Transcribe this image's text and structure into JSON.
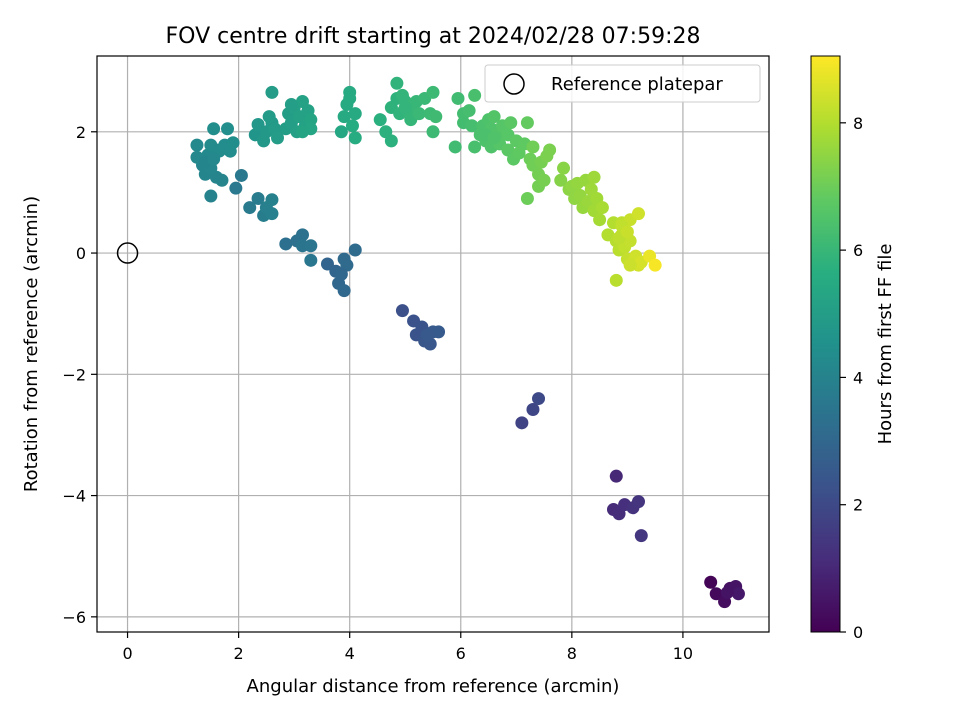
{
  "chart_data": {
    "type": "scatter",
    "title": "FOV centre drift starting at 2024/02/28 07:59:28",
    "xlabel": "Angular distance from reference (arcmin)",
    "ylabel": "Rotation from reference (arcmin)",
    "xlim": [
      -0.55,
      11.55
    ],
    "ylim": [
      -6.25,
      3.25
    ],
    "xticks": [
      0,
      2,
      4,
      6,
      8,
      10
    ],
    "yticks": [
      -6,
      -4,
      -2,
      0,
      2
    ],
    "grid": true,
    "legend": {
      "label": "Reference platepar",
      "placement": "top-right"
    },
    "reference_point": {
      "x": 0,
      "y": 0
    },
    "colorbar": {
      "label": "Hours from first FF file",
      "range": [
        0,
        9.05
      ],
      "ticks": [
        0,
        2,
        4,
        6,
        8
      ],
      "colormap": "viridis"
    },
    "series": [
      {
        "points": [
          [
            10.5,
            -5.43,
            0.1
          ],
          [
            10.6,
            -5.62,
            0.2
          ],
          [
            10.75,
            -5.75,
            0.3
          ],
          [
            10.85,
            -5.53,
            0.4
          ],
          [
            10.95,
            -5.5,
            0.5
          ],
          [
            11.0,
            -5.62,
            0.6
          ],
          [
            10.8,
            -5.6,
            0.45
          ],
          [
            8.8,
            -3.68,
            1.0
          ],
          [
            8.75,
            -4.23,
            1.1
          ],
          [
            8.85,
            -4.3,
            1.15
          ],
          [
            8.95,
            -4.15,
            1.2
          ],
          [
            9.1,
            -4.2,
            1.3
          ],
          [
            9.2,
            -4.1,
            1.35
          ],
          [
            9.25,
            -4.66,
            1.4
          ],
          [
            7.1,
            -2.8,
            1.8
          ],
          [
            7.3,
            -2.58,
            1.9
          ],
          [
            7.4,
            -2.4,
            2.0
          ],
          [
            4.95,
            -0.95,
            2.2
          ],
          [
            5.15,
            -1.12,
            2.25
          ],
          [
            5.3,
            -1.22,
            2.3
          ],
          [
            5.2,
            -1.35,
            2.35
          ],
          [
            5.35,
            -1.45,
            2.4
          ],
          [
            5.45,
            -1.5,
            2.45
          ],
          [
            5.5,
            -1.3,
            2.5
          ],
          [
            5.6,
            -1.3,
            2.55
          ],
          [
            5.4,
            -1.35,
            2.5
          ],
          [
            3.6,
            -0.18,
            2.9
          ],
          [
            3.75,
            -0.3,
            2.95
          ],
          [
            3.8,
            -0.5,
            3.0
          ],
          [
            3.9,
            -0.62,
            3.05
          ],
          [
            3.95,
            -0.2,
            3.1
          ],
          [
            3.9,
            -0.1,
            3.12
          ],
          [
            4.1,
            0.05,
            3.15
          ],
          [
            3.85,
            -0.35,
            3.0
          ],
          [
            2.85,
            0.15,
            3.3
          ],
          [
            3.05,
            0.2,
            3.35
          ],
          [
            3.15,
            0.3,
            3.4
          ],
          [
            3.15,
            0.12,
            3.45
          ],
          [
            3.3,
            0.12,
            3.5
          ],
          [
            3.3,
            -0.12,
            3.55
          ],
          [
            2.2,
            0.75,
            3.7
          ],
          [
            2.35,
            0.9,
            3.75
          ],
          [
            2.45,
            0.62,
            3.8
          ],
          [
            2.5,
            0.75,
            3.85
          ],
          [
            2.6,
            0.65,
            3.9
          ],
          [
            2.6,
            0.88,
            3.95
          ],
          [
            2.05,
            1.28,
            3.6
          ],
          [
            1.95,
            1.07,
            3.65
          ],
          [
            1.5,
            0.94,
            4.0
          ],
          [
            1.6,
            1.25,
            4.05
          ],
          [
            1.7,
            1.2,
            4.05
          ],
          [
            1.4,
            1.3,
            4.1
          ],
          [
            1.35,
            1.45,
            4.1
          ],
          [
            1.5,
            1.4,
            4.15
          ],
          [
            1.55,
            1.6,
            4.15
          ],
          [
            1.6,
            1.7,
            4.2
          ],
          [
            1.25,
            1.58,
            4.2
          ],
          [
            1.25,
            1.78,
            4.25
          ],
          [
            1.45,
            1.62,
            4.25
          ],
          [
            1.5,
            1.78,
            4.3
          ],
          [
            1.65,
            1.68,
            4.3
          ],
          [
            1.75,
            1.78,
            4.35
          ],
          [
            1.85,
            1.68,
            4.35
          ],
          [
            1.9,
            1.82,
            4.4
          ],
          [
            1.55,
            2.05,
            4.4
          ],
          [
            1.8,
            2.05,
            4.45
          ],
          [
            1.4,
            1.5,
            4.1
          ],
          [
            1.55,
            1.55,
            4.2
          ],
          [
            2.3,
            1.95,
            4.7
          ],
          [
            2.35,
            2.12,
            4.75
          ],
          [
            2.45,
            1.85,
            4.8
          ],
          [
            2.5,
            2.0,
            4.8
          ],
          [
            2.6,
            2.15,
            4.85
          ],
          [
            2.55,
            2.25,
            4.9
          ],
          [
            2.65,
            2.05,
            4.9
          ],
          [
            2.7,
            1.9,
            4.95
          ],
          [
            2.6,
            2.65,
            4.95
          ],
          [
            2.85,
            2.05,
            5.0
          ],
          [
            2.9,
            2.3,
            5.0
          ],
          [
            2.95,
            2.15,
            5.05
          ],
          [
            3.0,
            2.4,
            5.1
          ],
          [
            3.05,
            2.0,
            5.1
          ],
          [
            3.1,
            2.25,
            5.15
          ],
          [
            3.15,
            2.5,
            5.15
          ],
          [
            3.2,
            2.1,
            5.2
          ],
          [
            3.25,
            2.35,
            5.2
          ],
          [
            3.3,
            2.2,
            5.25
          ],
          [
            3.3,
            2.05,
            5.3
          ],
          [
            3.15,
            2.0,
            5.25
          ],
          [
            2.95,
            2.45,
            5.05
          ],
          [
            3.85,
            2.0,
            5.4
          ],
          [
            3.9,
            2.25,
            5.45
          ],
          [
            3.95,
            2.45,
            5.45
          ],
          [
            4.0,
            2.65,
            5.5
          ],
          [
            4.1,
            2.3,
            5.5
          ],
          [
            4.05,
            2.1,
            5.55
          ],
          [
            4.1,
            1.9,
            5.55
          ],
          [
            4.0,
            2.55,
            5.5
          ],
          [
            4.55,
            2.2,
            5.7
          ],
          [
            4.65,
            2.0,
            5.75
          ],
          [
            4.75,
            1.85,
            5.75
          ],
          [
            4.75,
            2.4,
            5.8
          ],
          [
            4.85,
            2.55,
            5.8
          ],
          [
            4.85,
            2.8,
            5.85
          ],
          [
            4.9,
            2.3,
            5.85
          ],
          [
            4.95,
            2.6,
            5.9
          ],
          [
            5.0,
            2.5,
            5.9
          ],
          [
            5.05,
            2.35,
            5.95
          ],
          [
            5.1,
            2.2,
            5.95
          ],
          [
            5.15,
            2.45,
            6.0
          ],
          [
            5.2,
            2.5,
            6.0
          ],
          [
            5.25,
            2.3,
            6.05
          ],
          [
            5.35,
            2.55,
            6.05
          ],
          [
            5.45,
            2.3,
            6.1
          ],
          [
            5.5,
            2.65,
            6.1
          ],
          [
            5.5,
            2.0,
            6.1
          ],
          [
            5.55,
            2.25,
            6.15
          ],
          [
            5.0,
            2.4,
            5.9
          ],
          [
            5.9,
            1.75,
            6.2
          ],
          [
            5.95,
            2.55,
            6.2
          ],
          [
            6.05,
            2.3,
            6.25
          ],
          [
            6.05,
            2.15,
            6.25
          ],
          [
            6.15,
            2.35,
            6.3
          ],
          [
            6.2,
            2.1,
            6.3
          ],
          [
            6.25,
            2.6,
            6.35
          ],
          [
            6.25,
            1.75,
            6.35
          ],
          [
            6.35,
            1.95,
            6.4
          ],
          [
            6.4,
            2.1,
            6.4
          ],
          [
            6.45,
            1.85,
            6.45
          ],
          [
            6.5,
            2.2,
            6.45
          ],
          [
            6.55,
            1.75,
            6.5
          ],
          [
            6.55,
            2.05,
            6.5
          ],
          [
            6.6,
            2.25,
            6.55
          ],
          [
            6.65,
            1.95,
            6.55
          ],
          [
            6.7,
            1.8,
            6.6
          ],
          [
            6.75,
            2.1,
            6.6
          ],
          [
            6.85,
            1.95,
            6.65
          ],
          [
            6.85,
            1.7,
            6.7
          ],
          [
            6.9,
            2.15,
            6.7
          ],
          [
            6.95,
            1.55,
            6.75
          ],
          [
            7.0,
            1.85,
            6.75
          ],
          [
            7.05,
            1.65,
            6.8
          ],
          [
            7.15,
            1.8,
            6.8
          ],
          [
            7.2,
            2.15,
            6.85
          ],
          [
            6.45,
            1.95,
            6.4
          ],
          [
            6.6,
            1.9,
            6.5
          ],
          [
            7.2,
            0.9,
            7.0
          ],
          [
            7.25,
            1.55,
            7.0
          ],
          [
            7.3,
            1.45,
            7.05
          ],
          [
            7.3,
            1.75,
            7.05
          ],
          [
            7.4,
            1.3,
            7.1
          ],
          [
            7.4,
            1.1,
            7.1
          ],
          [
            7.45,
            1.5,
            7.15
          ],
          [
            7.5,
            1.2,
            7.15
          ],
          [
            7.55,
            1.6,
            7.2
          ],
          [
            7.6,
            1.7,
            7.2
          ],
          [
            7.8,
            1.2,
            7.35
          ],
          [
            7.85,
            1.4,
            7.4
          ],
          [
            7.95,
            1.05,
            7.45
          ],
          [
            8.0,
            1.1,
            7.5
          ],
          [
            8.05,
            0.9,
            7.5
          ],
          [
            8.1,
            1.15,
            7.55
          ],
          [
            8.15,
            0.95,
            7.55
          ],
          [
            8.2,
            0.75,
            7.6
          ],
          [
            8.25,
            1.2,
            7.6
          ],
          [
            8.3,
            0.85,
            7.65
          ],
          [
            8.35,
            1.05,
            7.7
          ],
          [
            8.4,
            1.25,
            7.7
          ],
          [
            8.4,
            0.7,
            7.75
          ],
          [
            8.45,
            0.9,
            7.75
          ],
          [
            8.5,
            0.55,
            7.8
          ],
          [
            8.55,
            0.75,
            7.85
          ],
          [
            8.65,
            0.3,
            8.0
          ],
          [
            8.75,
            0.5,
            8.0
          ],
          [
            8.8,
            0.2,
            8.05
          ],
          [
            8.8,
            -0.45,
            8.1
          ],
          [
            8.85,
            0.05,
            8.1
          ],
          [
            8.9,
            0.5,
            8.15
          ],
          [
            8.9,
            0.3,
            8.15
          ],
          [
            8.95,
            0.1,
            8.2
          ],
          [
            9.0,
            -0.1,
            8.25
          ],
          [
            9.05,
            0.2,
            8.25
          ],
          [
            9.05,
            0.55,
            8.3
          ],
          [
            9.1,
            -0.15,
            8.35
          ],
          [
            9.15,
            -0.05,
            8.4
          ],
          [
            9.2,
            0.65,
            8.4
          ],
          [
            9.2,
            -0.2,
            8.45
          ],
          [
            9.25,
            -0.15,
            8.5
          ],
          [
            9.05,
            -0.2,
            8.35
          ],
          [
            8.85,
            0.25,
            8.15
          ],
          [
            9.4,
            -0.05,
            8.8
          ],
          [
            9.5,
            -0.2,
            8.95
          ],
          [
            8.9,
            0.45,
            8.2
          ],
          [
            9.0,
            0.35,
            8.3
          ]
        ]
      }
    ]
  }
}
